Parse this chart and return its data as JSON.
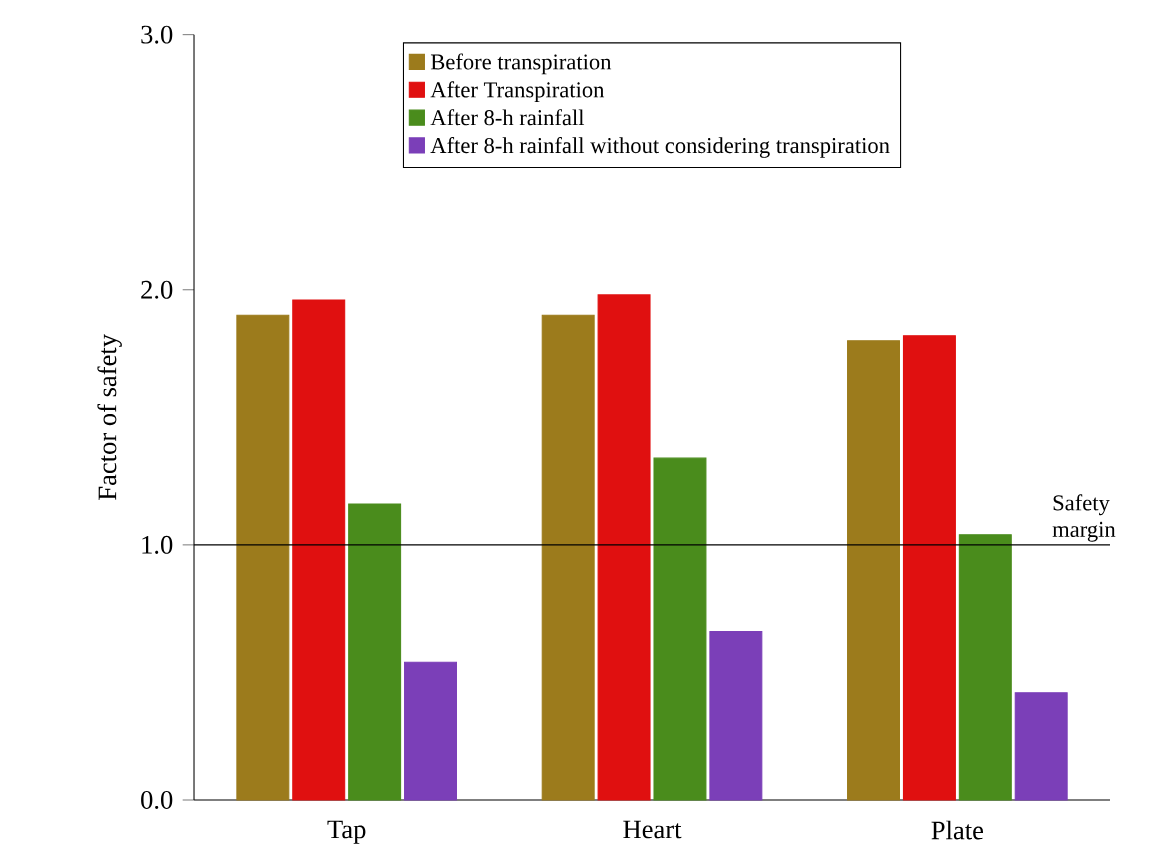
{
  "chart_data": {
    "type": "bar",
    "ylabel": "Factor of safety",
    "categories": [
      "Tap",
      "Heart",
      "Plate"
    ],
    "series": [
      {
        "name": "Before transpiration",
        "color": "#9c7b1c",
        "values": [
          1.9,
          1.9,
          1.8
        ]
      },
      {
        "name": "After Transpiration",
        "color": "#e01010",
        "values": [
          1.96,
          1.98,
          1.82
        ]
      },
      {
        "name": "After 8-h rainfall",
        "color": "#4a8c1c",
        "values": [
          1.16,
          1.34,
          1.04
        ]
      },
      {
        "name": "After 8-h rainfall without considering transpiration",
        "color": "#7b3fb8",
        "values": [
          0.54,
          0.66,
          0.42
        ]
      }
    ],
    "ylim": [
      0,
      3
    ],
    "yticks": [
      {
        "value": 0,
        "label": "0.0"
      },
      {
        "value": 1,
        "label": "1.0"
      },
      {
        "value": 2,
        "label": "2.0"
      },
      {
        "value": 3,
        "label": "3.0"
      }
    ],
    "ref_lines": [
      {
        "axis": "y",
        "value": 1,
        "label": "Safety margin",
        "color": "#000000"
      }
    ],
    "legend": "top"
  }
}
